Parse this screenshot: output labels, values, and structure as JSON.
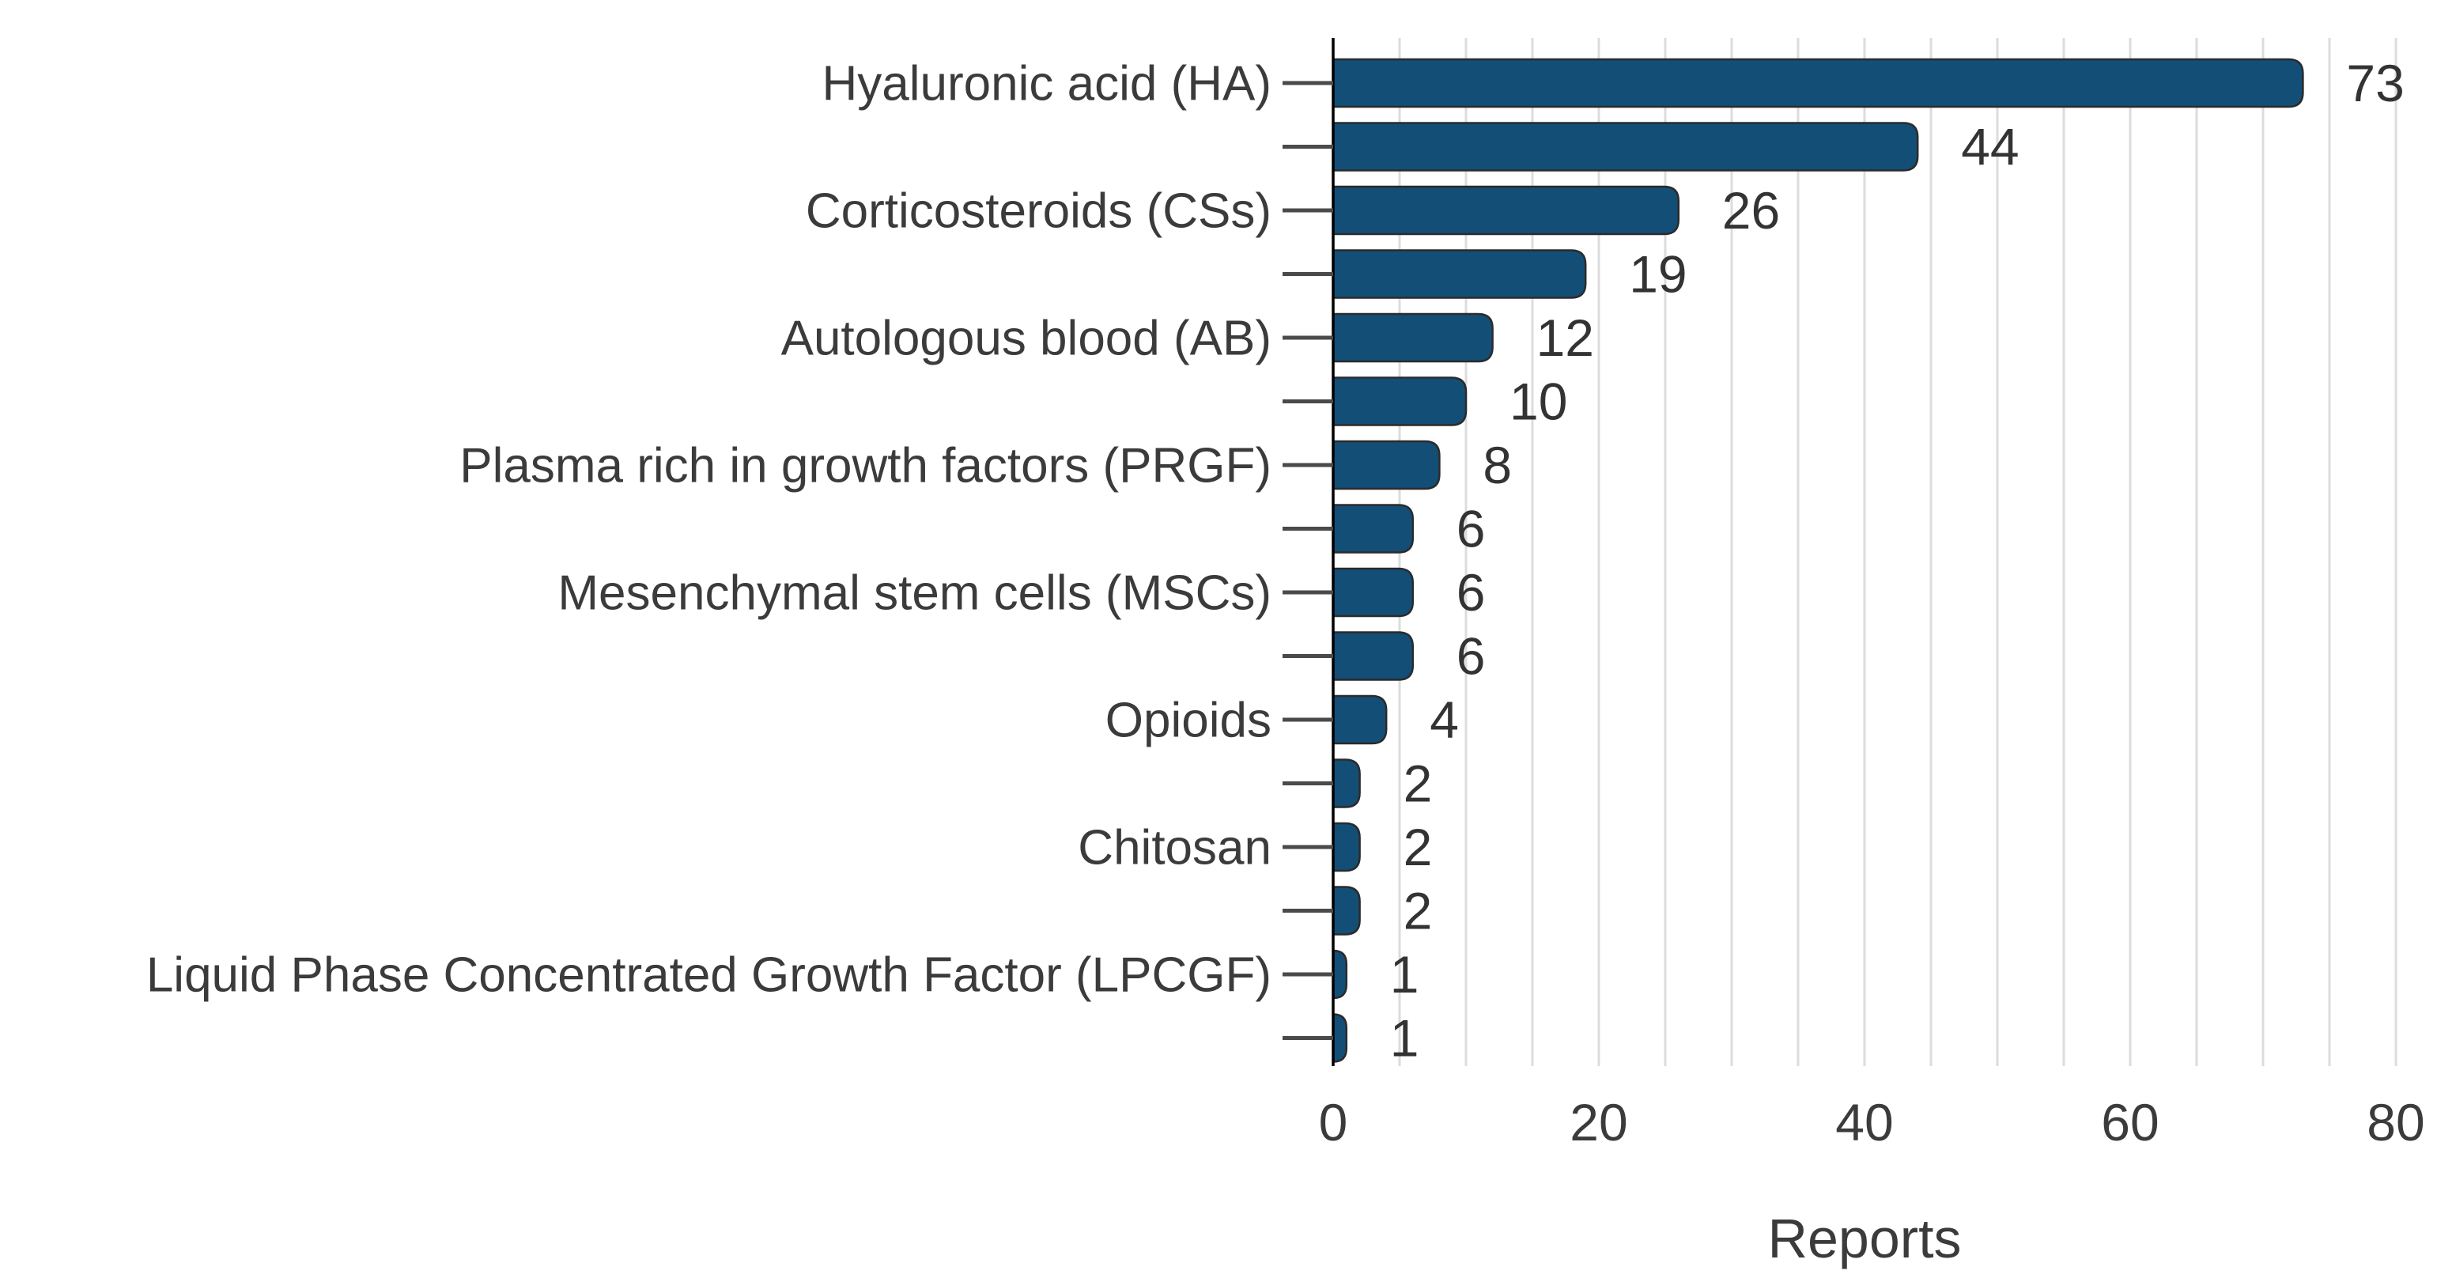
{
  "chart_data": {
    "type": "bar",
    "orientation": "horizontal",
    "title": "",
    "xlabel": "Reports",
    "ylabel": "",
    "categories": [
      "Hyaluronic acid (HA)",
      "",
      "Corticosteroids (CSs)",
      "",
      "Autologous blood (AB)",
      "",
      "Plasma rich in growth factors (PRGF)",
      "",
      "Mesenchymal stem cells (MSCs)",
      "",
      "Opioids",
      "",
      "Chitosan",
      "",
      "Liquid Phase Concentrated Growth Factor (LPCGF)",
      ""
    ],
    "values": [
      73,
      44,
      26,
      19,
      12,
      10,
      8,
      6,
      6,
      6,
      4,
      2,
      2,
      2,
      1,
      1
    ],
    "value_labels": [
      "73",
      "44",
      "26",
      "19",
      "12",
      "10",
      "8",
      "6",
      "6",
      "6",
      "4",
      "2",
      "2",
      "2",
      "1",
      "1"
    ],
    "xticks": [
      0,
      20,
      40,
      60,
      80
    ],
    "xtick_labels": [
      "0",
      "20",
      "40",
      "60",
      "80"
    ],
    "xlim": [
      0,
      80
    ],
    "grid_step": 5,
    "grid_on": true,
    "legend": "none",
    "colors": {
      "bar_fill": "#134e77",
      "bar_outline": "#2b2b2b",
      "grid_line": "#dcdcdc",
      "axis_line": "#000000",
      "tick_mark": "#4a4a4a",
      "label_text": "#3b3b3b",
      "value_text": "#333333",
      "background": "#ffffff"
    }
  }
}
